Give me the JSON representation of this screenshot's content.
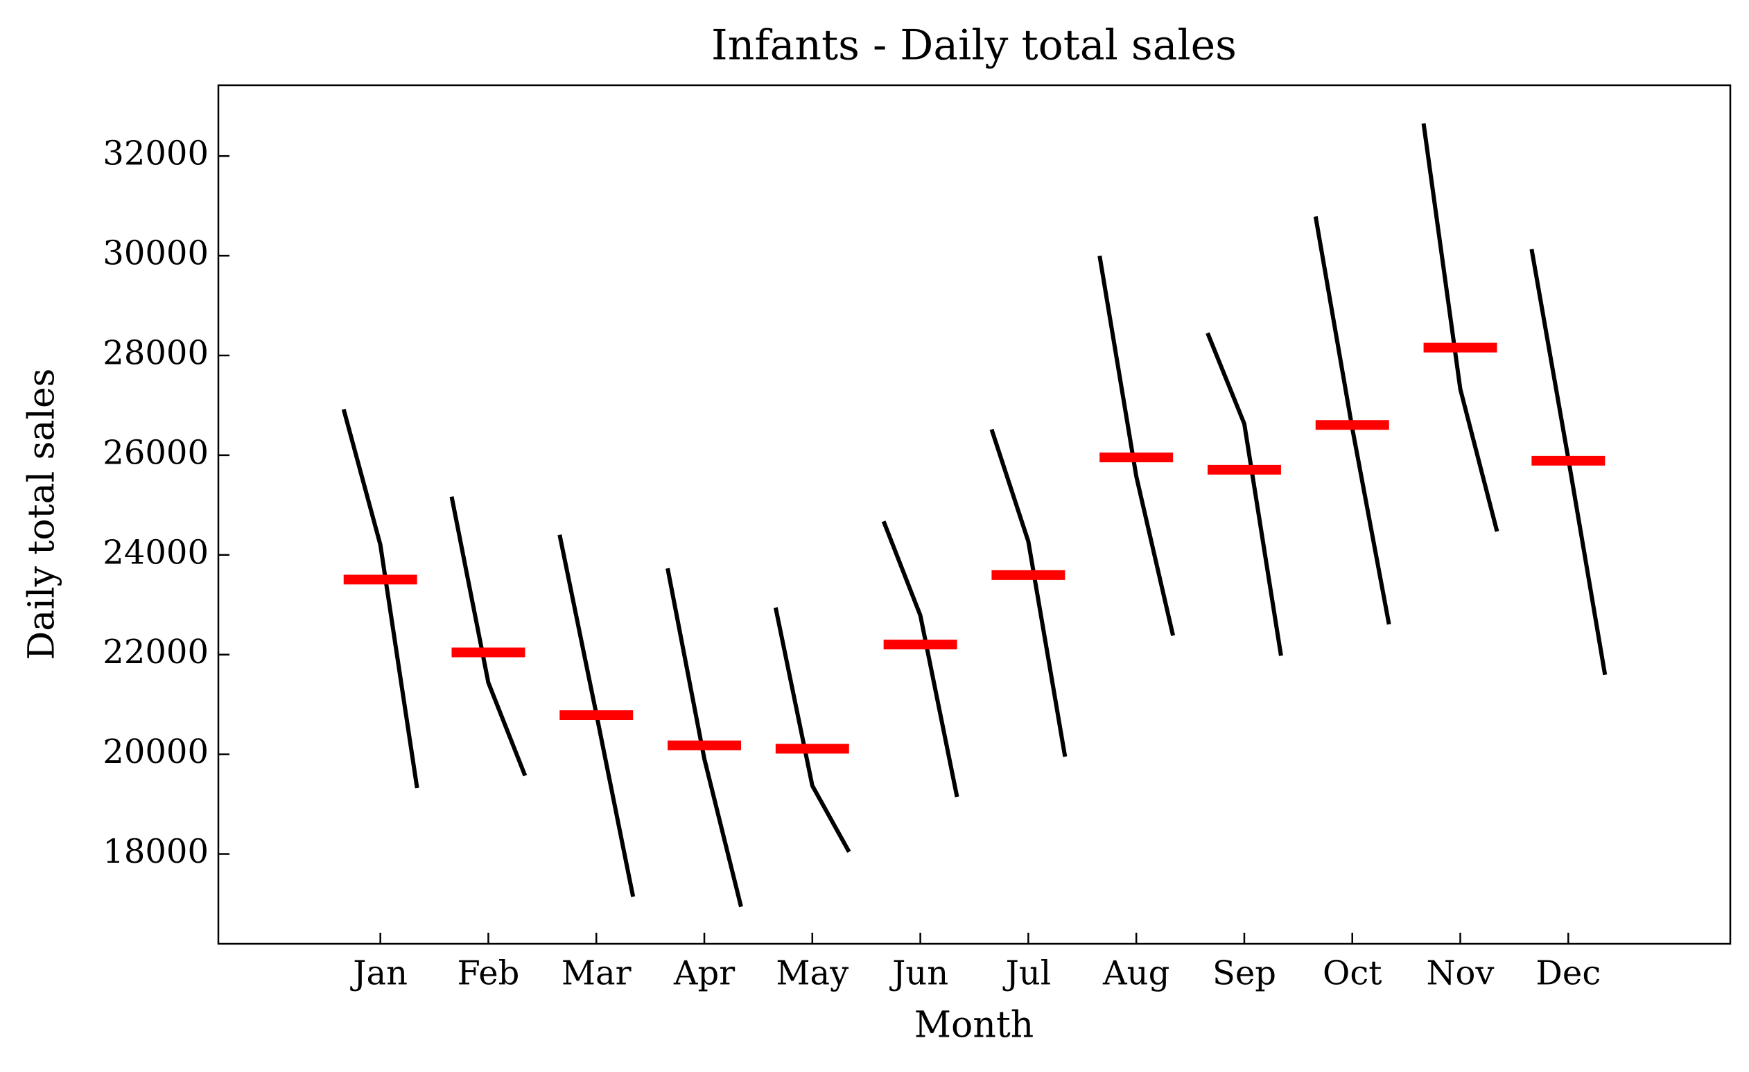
{
  "chart_data": {
    "type": "month_plot",
    "title": "Infants - Daily total sales",
    "x_label": "Month",
    "y_label": "Daily total sales",
    "categories": [
      "Jan",
      "Feb",
      "Mar",
      "Apr",
      "May",
      "Jun",
      "Jul",
      "Aug",
      "Sep",
      "Oct",
      "Nov",
      "Dec"
    ],
    "values": [
      [
        26921,
        24202,
        19326
      ],
      [
        25169,
        21438,
        19573
      ],
      [
        24404,
        20811,
        17146
      ],
      [
        23730,
        19910,
        16944
      ],
      [
        22944,
        19371,
        18045
      ],
      [
        24674,
        22787,
        19146
      ],
      [
        26517,
        24270,
        19955
      ],
      [
        30000,
        25573,
        22382
      ],
      [
        28449,
        26629,
        21978
      ],
      [
        30787,
        26539,
        22607
      ],
      [
        32652,
        27326,
        24472
      ],
      [
        30135,
        25933,
        21596
      ]
    ],
    "means": [
      23506,
      22045,
      20787,
      20180,
      20112,
      22202,
      23596,
      25955,
      25708,
      26607,
      28157,
      25888
    ],
    "line_color": "#000000",
    "mean_color": "#ff0000",
    "ylim": [
      16200,
      33420
    ],
    "yticks": [
      18000,
      20000,
      22000,
      24000,
      26000,
      28000,
      30000,
      32000
    ]
  }
}
